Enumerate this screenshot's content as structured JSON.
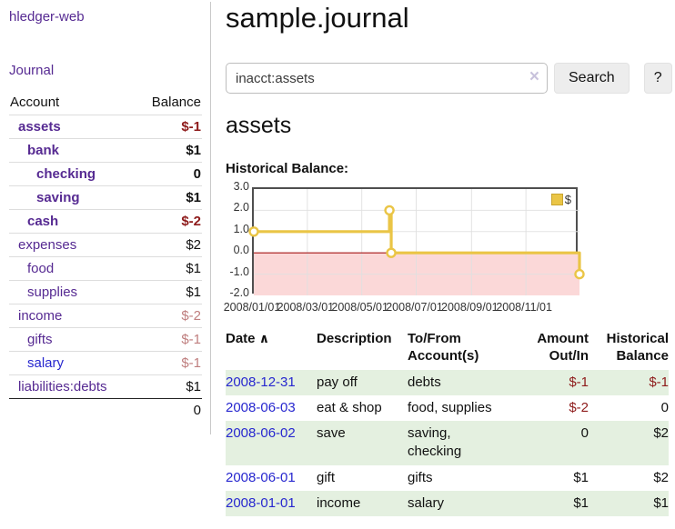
{
  "colors": {
    "link_purple": "#562a92",
    "link_blue": "#2727cf",
    "negative_strong": "#8e1b1b",
    "negative_soft": "#bf7e7e",
    "row_highlight_green": "#e4f0e0",
    "chart_line_yellow": "#eac546",
    "chart_negative_fill": "#fbd8d8",
    "chart_zero_line": "#a51414"
  },
  "app_title": "hledger-web",
  "sidebar": {
    "journal_link": "Journal",
    "accounts": {
      "header_account": "Account",
      "header_balance": "Balance",
      "rows": [
        {
          "name": "assets",
          "balance": "$-1",
          "depth": 1,
          "bold": true,
          "tone": "strong-neg"
        },
        {
          "name": "bank",
          "balance": "$1",
          "depth": 2,
          "bold": true,
          "tone": null
        },
        {
          "name": "checking",
          "balance": "0",
          "depth": 3,
          "bold": true,
          "tone": null
        },
        {
          "name": "saving",
          "balance": "$1",
          "depth": 3,
          "bold": true,
          "tone": null
        },
        {
          "name": "cash",
          "balance": "$-2",
          "depth": 2,
          "bold": true,
          "tone": "strong-neg"
        },
        {
          "name": "expenses",
          "balance": "$2",
          "depth": 1,
          "bold": false,
          "tone": null
        },
        {
          "name": "food",
          "balance": "$1",
          "depth": 2,
          "bold": false,
          "tone": null
        },
        {
          "name": "supplies",
          "balance": "$1",
          "depth": 2,
          "bold": false,
          "tone": null
        },
        {
          "name": "income",
          "balance": "$-2",
          "depth": 1,
          "bold": false,
          "tone": "soft-neg"
        },
        {
          "name": "gifts",
          "balance": "$-1",
          "depth": 2,
          "bold": false,
          "tone": "soft-neg"
        },
        {
          "name": "salary",
          "balance": "$-1",
          "depth": 2,
          "bold": false,
          "tone": "soft-neg",
          "blue_link": true
        },
        {
          "name": "liabilities:debts",
          "balance": "$1",
          "depth": 1,
          "bold": false,
          "tone": null
        }
      ],
      "total": "0"
    }
  },
  "main": {
    "title": "sample.journal",
    "search": {
      "value": "inacct:assets",
      "clear_icon": "×",
      "search_button": "Search",
      "help_button": "?"
    },
    "account_heading": "assets",
    "chart_label": "Historical Balance:"
  },
  "chart_data": {
    "type": "line",
    "step": true,
    "title": "Historical Balance:",
    "series": [
      {
        "name": "$",
        "color": "#eac546",
        "points": [
          [
            "2008-01-01",
            1
          ],
          [
            "2008-06-01",
            2
          ],
          [
            "2008-06-03",
            0
          ],
          [
            "2008-12-31",
            -1
          ]
        ]
      }
    ],
    "x_range": [
      "2008-01-01",
      "2008-12-31"
    ],
    "ylim": [
      -2,
      3
    ],
    "y_ticks": [
      3.0,
      2.0,
      1.0,
      0.0,
      -1.0,
      -2.0
    ],
    "x_ticks": [
      "2008/01/01",
      "2008/03/01",
      "2008/05/01",
      "2008/07/01",
      "2008/09/01",
      "2008/11/01"
    ],
    "grid": true,
    "negative_region_shaded": true,
    "legend": {
      "label": "$",
      "position": "top-right"
    }
  },
  "register": {
    "sort_icon": "∧",
    "columns": [
      {
        "label": "Date"
      },
      {
        "label": "Description"
      },
      {
        "label": "To/From Account(s)"
      },
      {
        "label": "Amount Out/In"
      },
      {
        "label": "Historical Balance"
      }
    ],
    "rows": [
      {
        "date": "2008-12-31",
        "description": "pay off",
        "accounts": "debts",
        "amount": "$-1",
        "balance": "$-1"
      },
      {
        "date": "2008-06-03",
        "description": "eat & shop",
        "accounts": "food, supplies",
        "amount": "$-2",
        "balance": "0"
      },
      {
        "date": "2008-06-02",
        "description": "save",
        "accounts": "saving, checking",
        "amount": "0",
        "balance": "$2"
      },
      {
        "date": "2008-06-01",
        "description": "gift",
        "accounts": "gifts",
        "amount": "$1",
        "balance": "$2"
      },
      {
        "date": "2008-01-01",
        "description": "income",
        "accounts": "salary",
        "amount": "$1",
        "balance": "$1"
      }
    ]
  }
}
